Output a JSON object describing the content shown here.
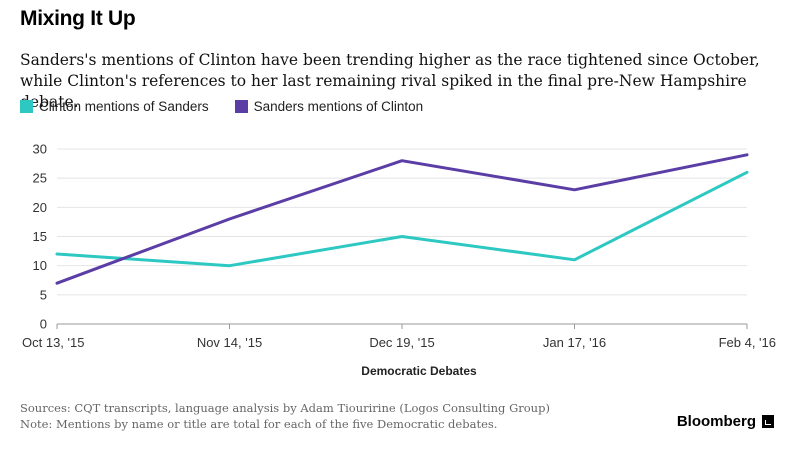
{
  "header": {
    "title": "Mixing It Up",
    "subtitle": "Sanders's mentions of Clinton have been trending higher as the race tightened since October, while Clinton's references to her last remaining rival spiked in the final pre-New Hampshire debate."
  },
  "chart_data": {
    "type": "line",
    "x": [
      "Oct 13, '15",
      "Nov 14, '15",
      "Dec 19, '15",
      "Jan 17, '16",
      "Feb 4, '16"
    ],
    "series": [
      {
        "name": "Clinton mentions of Sanders",
        "color": "#2ec8c3",
        "values": [
          12,
          10,
          15,
          11,
          26
        ]
      },
      {
        "name": "Sanders mentions of Clinton",
        "color": "#5b3da6",
        "values": [
          7,
          18,
          28,
          23,
          29
        ]
      }
    ],
    "xlabel": "Democratic Debates",
    "ylabel": "",
    "ylim": [
      0,
      30
    ],
    "yticks": [
      0,
      5,
      10,
      15,
      20,
      25,
      30
    ],
    "grid": true,
    "legend": "top-left"
  },
  "footer": {
    "source": "Sources: CQT transcripts, language analysis by Adam Tiouririne (Logos Consulting Group)",
    "note": "Note: Mentions by name or title are total for each of the five Democratic debates.",
    "brand": "Bloomberg"
  }
}
